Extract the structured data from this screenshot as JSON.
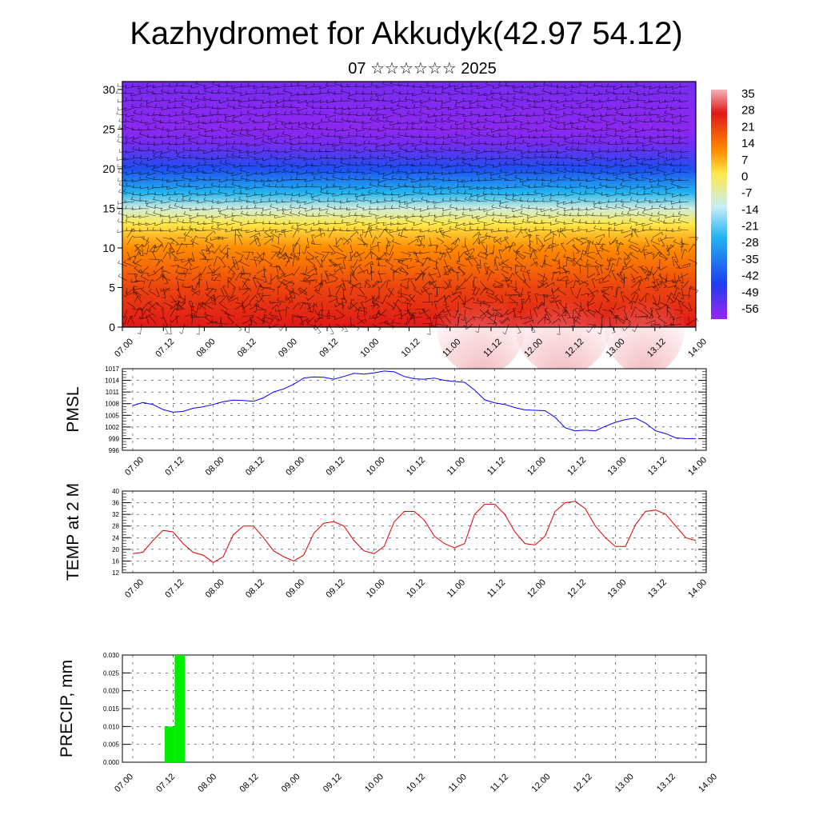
{
  "header": {
    "title": "Kazhydromet for Akkudyk(42.97 54.12)",
    "subtitle": "07 ☆☆☆☆☆☆ 2025"
  },
  "time_labels": [
    "07.00",
    "07.12",
    "08.00",
    "08.12",
    "09.00",
    "09.12",
    "10.00",
    "10.12",
    "11.00",
    "11.12",
    "12.00",
    "12.12",
    "13.00",
    "13.12",
    "14.00"
  ],
  "chart_data": [
    {
      "id": "cross-section",
      "type": "heatmap",
      "title": "",
      "xlabel": "",
      "ylabel": "",
      "y_ticks": [
        0,
        5,
        10,
        15,
        20,
        25,
        30
      ],
      "ylim": [
        0,
        31
      ],
      "colorbar_labels": [
        "35",
        "28",
        "21",
        "14",
        "7",
        "0",
        "-7",
        "-14",
        "-21",
        "-28",
        "-35",
        "-42",
        "-49",
        "-56"
      ],
      "colorbar_range": [
        -60,
        38
      ],
      "temperature_profile": {
        "heights": [
          0,
          5,
          10,
          13,
          15,
          17,
          20,
          23,
          25,
          28,
          31
        ],
        "values": [
          28,
          22,
          12,
          2,
          -10,
          -25,
          -42,
          -55,
          -58,
          -57,
          -55
        ]
      },
      "wind_barbs": true,
      "colors": {
        "warm_max": "#f2b3b8",
        "warm": "#e01818",
        "orange": "#ff8c00",
        "yellow": "#ffe84a",
        "light_blue": "#c8eef6",
        "cyan": "#22b4f0",
        "blue": "#1e3cf0",
        "violet": "#8c28f0"
      }
    },
    {
      "id": "pmsl",
      "type": "line",
      "ylabel": "PMSL",
      "y_ticks": [
        996,
        999,
        1002,
        1005,
        1008,
        1011,
        1014,
        1017
      ],
      "ylim": [
        996,
        1017
      ],
      "color": "#0000ff",
      "x": [
        0,
        3,
        6,
        9,
        12,
        15,
        18,
        21,
        24,
        27,
        30,
        33,
        36,
        39,
        42,
        45,
        48,
        51,
        54,
        57,
        60,
        63,
        66,
        69,
        72,
        75,
        78,
        81,
        84,
        87,
        90,
        93,
        96,
        99,
        102,
        105,
        108,
        111,
        114,
        117,
        120,
        123,
        126,
        129,
        132,
        135,
        138,
        141,
        144,
        147,
        150,
        153,
        156,
        159,
        162,
        165,
        168
      ],
      "values": [
        1007.5,
        1008.3,
        1007.8,
        1006.5,
        1005.8,
        1006.0,
        1006.8,
        1007.2,
        1007.8,
        1008.5,
        1008.9,
        1008.8,
        1008.6,
        1009.5,
        1011.0,
        1011.8,
        1013.0,
        1014.6,
        1014.9,
        1014.8,
        1014.3,
        1015.0,
        1015.8,
        1015.6,
        1015.9,
        1016.4,
        1016.2,
        1015.0,
        1014.4,
        1014.3,
        1014.6,
        1014.0,
        1013.7,
        1013.5,
        1011.5,
        1009.0,
        1008.2,
        1007.8,
        1007.0,
        1006.4,
        1006.3,
        1006.2,
        1004.5,
        1001.8,
        1001.0,
        1001.2,
        1001.0,
        1002.2,
        1003.2,
        1003.9,
        1004.3,
        1003.0,
        1001.0,
        1000.3,
        999.2,
        999.0,
        999.0
      ]
    },
    {
      "id": "temp2m",
      "type": "line",
      "ylabel": "TEMP at 2 M",
      "y_ticks": [
        12,
        16,
        20,
        24,
        28,
        32,
        36,
        40
      ],
      "ylim": [
        12,
        40
      ],
      "color": "#e00000",
      "x": [
        0,
        3,
        6,
        9,
        12,
        15,
        18,
        21,
        24,
        27,
        30,
        33,
        36,
        39,
        42,
        45,
        48,
        51,
        54,
        57,
        60,
        63,
        66,
        69,
        72,
        75,
        78,
        81,
        84,
        87,
        90,
        93,
        96,
        99,
        102,
        105,
        108,
        111,
        114,
        117,
        120,
        123,
        126,
        129,
        132,
        135,
        138,
        141,
        144,
        147,
        150,
        153,
        156,
        159,
        162,
        165,
        168
      ],
      "values": [
        18.5,
        19.0,
        23.0,
        26.5,
        26.0,
        22.0,
        19.0,
        18.0,
        15.5,
        17.5,
        25.0,
        28.0,
        28.0,
        24.0,
        19.5,
        17.5,
        16.0,
        18.0,
        25.5,
        29.0,
        29.5,
        28.0,
        23.0,
        19.5,
        18.5,
        21.0,
        29.5,
        33.0,
        33.0,
        30.0,
        24.5,
        22.0,
        20.5,
        22.0,
        32.0,
        35.5,
        35.5,
        32.0,
        26.0,
        22.0,
        21.5,
        24.5,
        33.0,
        36.0,
        36.5,
        34.0,
        28.0,
        24.0,
        21.0,
        21.0,
        28.5,
        33.0,
        33.5,
        32.0,
        28.0,
        24.0,
        23.0
      ]
    },
    {
      "id": "precip",
      "type": "bar",
      "ylabel": "PRECIP, mm",
      "y_ticks": [
        "0.000",
        "0.005",
        "0.010",
        "0.015",
        "0.020",
        "0.025",
        "0.030"
      ],
      "ylim": [
        0,
        0.03
      ],
      "color": "#00ee00",
      "bars": [
        {
          "x_start": 9.5,
          "x_end": 12.5,
          "value": 0.01
        },
        {
          "x_start": 12.5,
          "x_end": 15.5,
          "value": 0.03
        }
      ]
    }
  ]
}
